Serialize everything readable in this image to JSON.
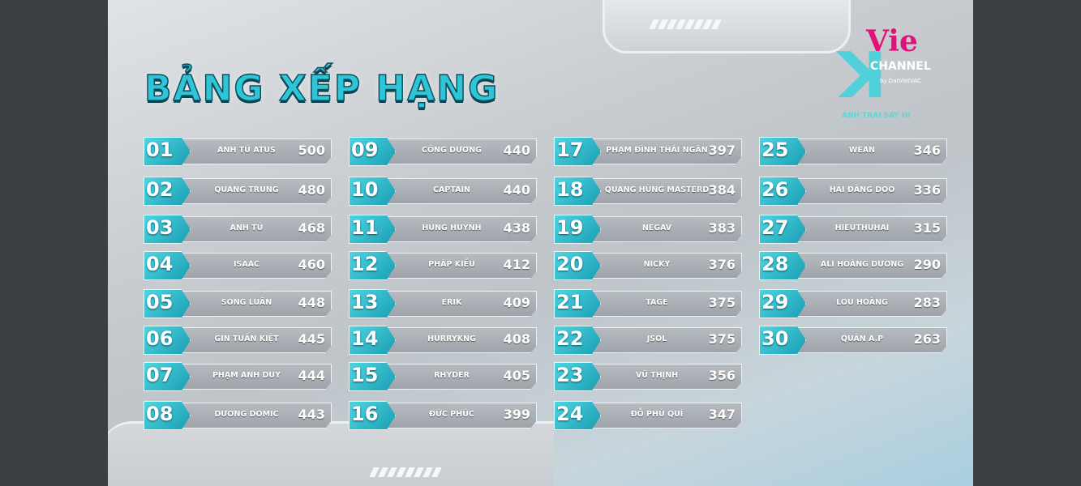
{
  "title": "BẢNG XẾP HẠNG",
  "logo": {
    "brand": "Vie",
    "channel": "CHANNEL",
    "by": "by DatVietVAC",
    "show": "ANH TRAI SAY HI"
  },
  "colors": {
    "accent": "#2ec6d6",
    "badge": "#1a9fb4",
    "logo_pink": "#e0127a"
  },
  "rankings": [
    {
      "rank": "01",
      "name": "ANH TÚ ATUS",
      "score": "500"
    },
    {
      "rank": "02",
      "name": "QUANG TRUNG",
      "score": "480"
    },
    {
      "rank": "03",
      "name": "ANH TÚ",
      "score": "468"
    },
    {
      "rank": "04",
      "name": "ISAAC",
      "score": "460"
    },
    {
      "rank": "05",
      "name": "SONG LUÂN",
      "score": "448"
    },
    {
      "rank": "06",
      "name": "GIN TUẤN KIỆT",
      "score": "445"
    },
    {
      "rank": "07",
      "name": "PHẠM ANH DUY",
      "score": "444"
    },
    {
      "rank": "08",
      "name": "DƯƠNG DOMIC",
      "score": "443"
    },
    {
      "rank": "09",
      "name": "CÔNG DƯƠNG",
      "score": "440"
    },
    {
      "rank": "10",
      "name": "CAPTAIN",
      "score": "440"
    },
    {
      "rank": "11",
      "name": "HÙNG HUỲNH",
      "score": "438"
    },
    {
      "rank": "12",
      "name": "PHÁP KIỀU",
      "score": "412"
    },
    {
      "rank": "13",
      "name": "ERIK",
      "score": "409"
    },
    {
      "rank": "14",
      "name": "HURRYKNG",
      "score": "408"
    },
    {
      "rank": "15",
      "name": "RHYDER",
      "score": "405"
    },
    {
      "rank": "16",
      "name": "ĐỨC PHÚC",
      "score": "399"
    },
    {
      "rank": "17",
      "name": "PHẠM ĐÌNH THÁI NGÂN",
      "score": "397"
    },
    {
      "rank": "18",
      "name": "QUANG HÙNG MASTERD",
      "score": "384"
    },
    {
      "rank": "19",
      "name": "NEGAV",
      "score": "383"
    },
    {
      "rank": "20",
      "name": "NICKY",
      "score": "376"
    },
    {
      "rank": "21",
      "name": "TAGE",
      "score": "375"
    },
    {
      "rank": "22",
      "name": "JSOL",
      "score": "375"
    },
    {
      "rank": "23",
      "name": "VŨ THỊNH",
      "score": "356"
    },
    {
      "rank": "24",
      "name": "ĐỖ PHÚ QUÍ",
      "score": "347"
    },
    {
      "rank": "25",
      "name": "WEAN",
      "score": "346"
    },
    {
      "rank": "26",
      "name": "HẢI ĐĂNG DOO",
      "score": "336"
    },
    {
      "rank": "27",
      "name": "HIEUTHUHAI",
      "score": "315"
    },
    {
      "rank": "28",
      "name": "ALI HOÀNG DƯƠNG",
      "score": "290"
    },
    {
      "rank": "29",
      "name": "LOU HOÀNG",
      "score": "283"
    },
    {
      "rank": "30",
      "name": "QUÂN A.P",
      "score": "263"
    }
  ]
}
